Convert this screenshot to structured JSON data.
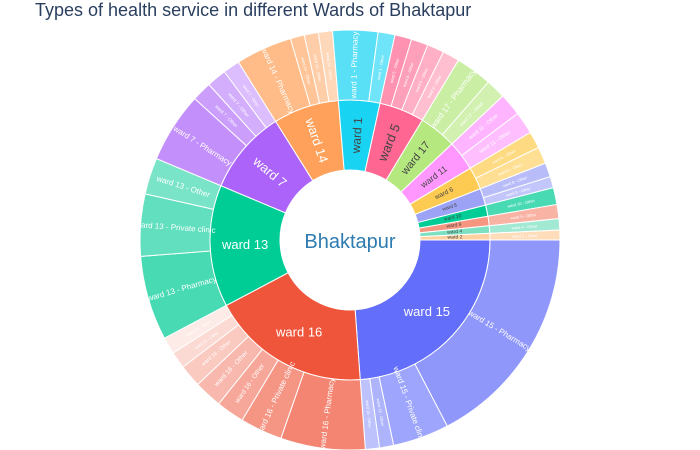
{
  "chart_data": {
    "type": "sunburst",
    "title": "Types of health service in different Wards of Bhaktapur",
    "root": "Bhaktapur",
    "root_color": "#ffffff",
    "root_label_color": "#2e7bb0",
    "children": [
      {
        "name": "ward 15",
        "label": "ward 15",
        "value": 11,
        "color": "#636efa",
        "children": [
          {
            "label": "ward 15 - Pharmacy",
            "value": 8
          },
          {
            "label": "ward 15 - Private clinic",
            "value": 2
          },
          {
            "label": "ward 15 - Other",
            "value": 0.5
          },
          {
            "label": "ward 15 - Other",
            "value": 0.5
          }
        ]
      },
      {
        "name": "ward 16",
        "label": "ward 16",
        "value": 8.5,
        "color": "#ef553b",
        "children": [
          {
            "label": "ward 16 - Pharmacy",
            "value": 3
          },
          {
            "label": "ward 16 - Private clinic",
            "value": 1.5
          },
          {
            "label": "ward 16 - Other",
            "value": 1
          },
          {
            "label": "ward 16 - Other",
            "value": 1
          },
          {
            "label": "ward 16 - Other",
            "value": 0.8
          },
          {
            "label": "ward 16 - Other",
            "value": 0.6
          },
          {
            "label": "ward 16 - Other",
            "value": 0.6
          }
        ]
      },
      {
        "name": "ward 13",
        "label": "ward 13",
        "value": 6.5,
        "color": "#00cc96",
        "children": [
          {
            "label": "ward 13 - Pharmacy",
            "value": 3
          },
          {
            "label": "ward 13 - Private clinic",
            "value": 2.2
          },
          {
            "label": "ward 13 - Other",
            "value": 1.3
          }
        ]
      },
      {
        "name": "ward 7",
        "label": "ward 7",
        "value": 4.5,
        "color": "#ab63fa",
        "children": [
          {
            "label": "ward 7 - Pharmacy",
            "value": 2.5
          },
          {
            "label": "ward 7 - Other",
            "value": 0.7
          },
          {
            "label": "ward 7 - Other",
            "value": 0.7
          },
          {
            "label": "ward 7 - Other",
            "value": 0.6
          }
        ]
      },
      {
        "name": "ward 14",
        "label": "ward 14",
        "value": 3.5,
        "color": "#ffa15a",
        "children": [
          {
            "label": "ward 14 - Pharmacy",
            "value": 2
          },
          {
            "label": "ward 14 - Other",
            "value": 0.5
          },
          {
            "label": "ward 14 - Other",
            "value": 0.5
          },
          {
            "label": "ward 14 - Other",
            "value": 0.5
          }
        ]
      },
      {
        "name": "ward 1",
        "label": "ward 1",
        "value": 2.2,
        "color": "#19d3f3",
        "children": [
          {
            "label": "ward 1 - Pharmacy",
            "value": 1.6
          },
          {
            "label": "ward 1 - Other",
            "value": 0.6
          }
        ]
      },
      {
        "name": "ward 5",
        "label": "ward 5",
        "value": 2.4,
        "color": "#ff6692",
        "children": [
          {
            "label": "ward 5 - Other",
            "value": 0.6
          },
          {
            "label": "ward 5 - Other",
            "value": 0.6
          },
          {
            "label": "ward 5 - Other",
            "value": 0.6
          },
          {
            "label": "ward 5 - Other",
            "value": 0.6
          }
        ]
      },
      {
        "name": "ward 17",
        "label": "ward 17",
        "value": 2.0,
        "color": "#b6e880",
        "children": [
          {
            "label": "ward 17 - Pharmacy",
            "value": 1.3
          },
          {
            "label": "ward 17 - Other",
            "value": 0.7
          }
        ]
      },
      {
        "name": "ward 11",
        "label": "ward 11",
        "value": 1.6,
        "color": "#ff97ff",
        "children": [
          {
            "label": "ward 11 - Other",
            "value": 0.8
          },
          {
            "label": "ward 11 - Other",
            "value": 0.8
          }
        ]
      },
      {
        "name": "ward 6",
        "label": "ward 6",
        "value": 1.2,
        "color": "#fecb52",
        "children": [
          {
            "label": "ward 6 - Other",
            "value": 0.6
          },
          {
            "label": "ward 6 - Other",
            "value": 0.6
          }
        ]
      },
      {
        "name": "ward 8",
        "label": "ward 8",
        "value": 0.9,
        "color": "#9ca3f7",
        "children": [
          {
            "label": "ward 8 - Other",
            "value": 0.5
          },
          {
            "label": "ward 8 - Other",
            "value": 0.4
          }
        ]
      },
      {
        "name": "ward 10",
        "label": "ward 10",
        "value": 0.6,
        "color": "#00cc96",
        "children": [
          {
            "label": "ward 10 - Other",
            "value": 0.6
          }
        ]
      },
      {
        "name": "ward 9",
        "label": "ward 9",
        "value": 0.5,
        "color": "#f79680",
        "children": [
          {
            "label": "ward 9 - Other",
            "value": 0.5
          }
        ]
      },
      {
        "name": "ward 4",
        "label": "ward 4",
        "value": 0.4,
        "color": "#7de0c0",
        "children": [
          {
            "label": "ward 4 - Other",
            "value": 0.4
          }
        ]
      },
      {
        "name": "ward 2",
        "label": "ward 2",
        "value": 0.35,
        "color": "#ffd0a0",
        "children": [
          {
            "label": "ward 2 - Other",
            "value": 0.35
          }
        ]
      }
    ]
  }
}
